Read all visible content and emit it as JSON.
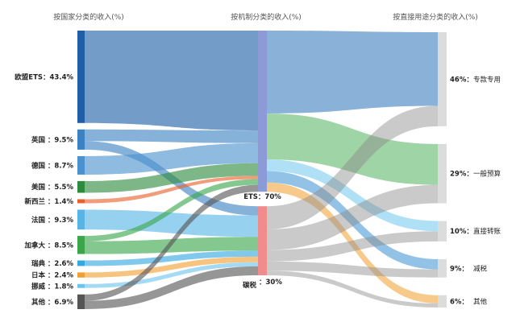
{
  "headers": {
    "left": "按国家分类的收入(%)",
    "middle": "按机制分类的收入(%)",
    "right": "按直接用途分类的收入(%)"
  },
  "chart_data": {
    "type": "sankey",
    "countries": [
      {
        "name": "欧盟ETS",
        "label": "欧盟ETS：43.4%",
        "value": 43.4,
        "color": "#1f5fa8"
      },
      {
        "name": "英国",
        "label": "英国 ：9.5%",
        "value": 9.5,
        "color": "#3b82c4"
      },
      {
        "name": "德国",
        "label": "德国 ：8.7%",
        "value": 8.7,
        "color": "#4a92cf"
      },
      {
        "name": "美国",
        "label": "美国 ：5.5%",
        "value": 5.5,
        "color": "#2e8b3e"
      },
      {
        "name": "新西兰",
        "label": "新西兰 ：1.4%",
        "value": 1.4,
        "color": "#e8612c"
      },
      {
        "name": "法国",
        "label": "法国 ：9.3%",
        "value": 9.3,
        "color": "#57b4e6"
      },
      {
        "name": "加拿大",
        "label": "加拿大 ：8.5%",
        "value": 8.5,
        "color": "#3aa64a"
      },
      {
        "name": "瑞典",
        "label": "瑞典 ：2.6%",
        "value": 2.6,
        "color": "#34a8e0"
      },
      {
        "name": "日本",
        "label": "日本 ：2.4%",
        "value": 2.4,
        "color": "#f0a030"
      },
      {
        "name": "挪威",
        "label": "挪威 ：1.8%",
        "value": 1.8,
        "color": "#6cc4ee"
      },
      {
        "name": "其他",
        "label": "其他 ：6.9%",
        "value": 6.9,
        "color": "#555555"
      }
    ],
    "mechanisms": [
      {
        "name": "ETS",
        "label": "ETS：70%",
        "value": 70,
        "color": "#8c9ad6"
      },
      {
        "name": "碳税",
        "label": "碳税",
        "pct_label": "：30%",
        "value": 30,
        "color": "#f08c8c"
      }
    ],
    "uses": [
      {
        "name": "专款专用",
        "pct": "46%：",
        "label": "专款专用",
        "value": 46
      },
      {
        "name": "一般预算",
        "pct": "29%：",
        "label": "一般预算",
        "value": 29
      },
      {
        "name": "直接转账",
        "pct": "10%：",
        "label": "直接转账",
        "value": 10
      },
      {
        "name": "减税",
        "pct": "9%：",
        "label": "减税",
        "value": 9
      },
      {
        "name": "其他",
        "pct": "6%：",
        "label": "其他",
        "value": 6
      }
    ],
    "flows_country_to_mechanism": [
      {
        "from": "欧盟ETS",
        "to": "ETS",
        "value": 43.4
      },
      {
        "from": "英国",
        "to": "ETS",
        "value": 5.5
      },
      {
        "from": "英国",
        "to": "碳税",
        "value": 4.0
      },
      {
        "from": "德国",
        "to": "ETS",
        "value": 8.7
      },
      {
        "from": "美国",
        "to": "ETS",
        "value": 5.5
      },
      {
        "from": "新西兰",
        "to": "ETS",
        "value": 1.4
      },
      {
        "from": "法国",
        "to": "碳税",
        "value": 9.3
      },
      {
        "from": "加拿大",
        "to": "ETS",
        "value": 2.5
      },
      {
        "from": "加拿大",
        "to": "碳税",
        "value": 6.0
      },
      {
        "from": "瑞典",
        "to": "碳税",
        "value": 2.6
      },
      {
        "from": "日本",
        "to": "碳税",
        "value": 2.4
      },
      {
        "from": "挪威",
        "to": "碳税",
        "value": 1.8
      },
      {
        "from": "其他",
        "to": "ETS",
        "value": 3.0
      },
      {
        "from": "其他",
        "to": "碳税",
        "value": 3.9
      }
    ],
    "flows_mechanism_to_use": [
      {
        "from": "ETS",
        "to": "专款专用",
        "value": 36
      },
      {
        "from": "ETS",
        "to": "一般预算",
        "value": 20
      },
      {
        "from": "ETS",
        "to": "直接转账",
        "value": 5
      },
      {
        "from": "ETS",
        "to": "减税",
        "value": 5
      },
      {
        "from": "ETS",
        "to": "其他",
        "value": 4
      },
      {
        "from": "碳税",
        "to": "专款专用",
        "value": 10
      },
      {
        "from": "碳税",
        "to": "一般预算",
        "value": 9
      },
      {
        "from": "碳税",
        "to": "直接转账",
        "value": 5
      },
      {
        "from": "碳税",
        "to": "减税",
        "value": 4
      },
      {
        "from": "碳税",
        "to": "其他",
        "value": 2
      }
    ]
  }
}
